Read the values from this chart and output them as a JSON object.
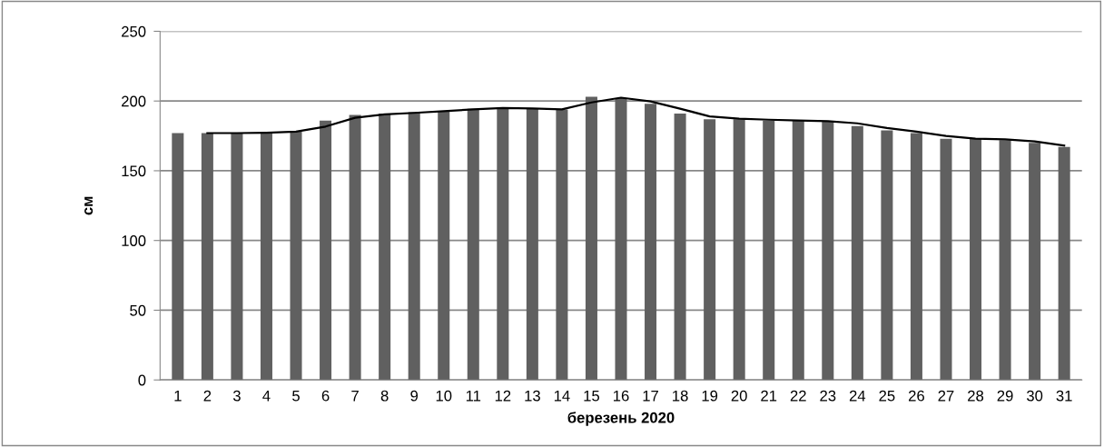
{
  "chart_data": {
    "type": "bar",
    "xlabel": "березень 2020",
    "ylabel": "см",
    "categories": [
      "1",
      "2",
      "3",
      "4",
      "5",
      "6",
      "7",
      "8",
      "9",
      "10",
      "11",
      "12",
      "13",
      "14",
      "15",
      "16",
      "17",
      "18",
      "19",
      "20",
      "21",
      "22",
      "23",
      "24",
      "25",
      "26",
      "27",
      "28",
      "29",
      "30",
      "31"
    ],
    "series": [
      {
        "color": "#606060",
        "values": [
          177,
          177,
          177,
          177.5,
          178,
          186,
          190,
          191,
          192,
          193,
          194.5,
          195,
          194.5,
          194,
          203,
          202,
          198,
          191,
          187,
          187,
          186,
          186,
          185.5,
          182,
          179,
          177,
          173,
          173,
          172,
          170,
          167
        ]
      },
      {
        "type": "line",
        "color": "#000000",
        "values": [
          null,
          177,
          177,
          177.3,
          178,
          181.7,
          188,
          190.4,
          191.5,
          192.7,
          194,
          195,
          194.6,
          194,
          199,
          202.4,
          199.7,
          194.5,
          189,
          187.3,
          186.6,
          186,
          185.6,
          184,
          180.6,
          178,
          175,
          173,
          172.5,
          171,
          168
        ]
      }
    ],
    "ylim": [
      0,
      250
    ],
    "yticks": [
      0,
      50,
      100,
      150,
      200,
      250
    ],
    "grid": "y",
    "legend": false,
    "marker": "none",
    "line_style": "solid"
  }
}
